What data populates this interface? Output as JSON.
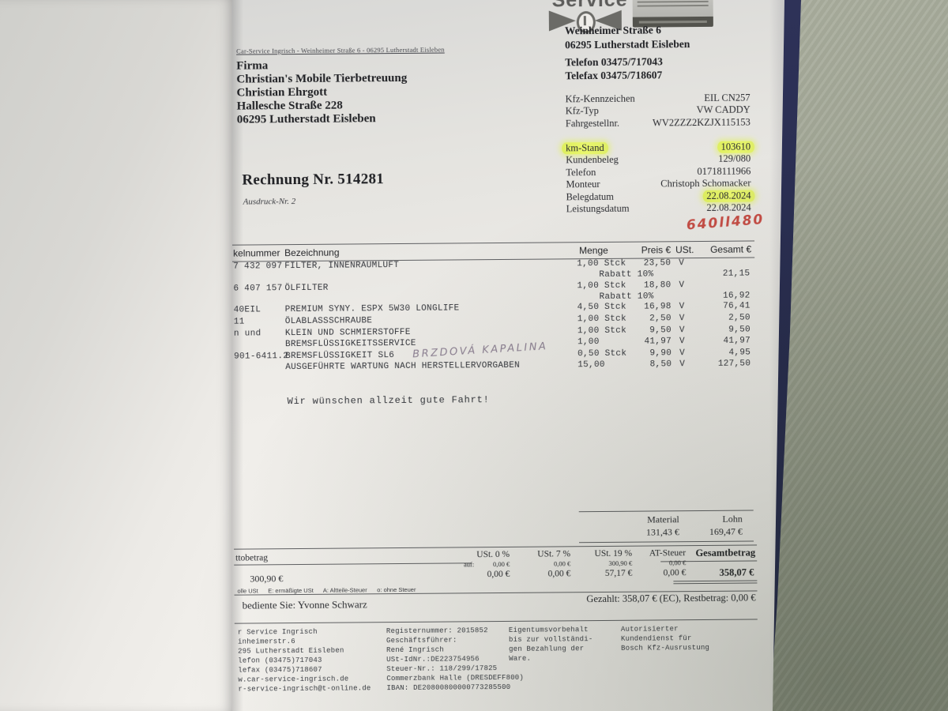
{
  "colors": {
    "highlight": "#e4f45f",
    "binder_edge": "#2b2f55",
    "desk": "#a0a494",
    "handwriting_red": "#c23b34",
    "handwriting_pencil": "#8d8093"
  },
  "logo": {
    "service_text": "Service"
  },
  "header": {
    "sender_line": "Car-Service Ingrisch - Weinheimer Straße 6 - 06295 Lutherstadt Eisleben",
    "recipient_lines": [
      "Firma",
      "Christian's Mobile Tierbetreuung",
      "Christian Ehrgott",
      "Hallesche Straße 228",
      "06295 Lutherstadt Eisleben"
    ],
    "shop_address_lines": [
      "Weinheimer Straße 6",
      "06295 Lutherstadt Eisleben"
    ],
    "shop_contact_lines": [
      "Telefon 03475/717043",
      "Telefax 03475/718607"
    ]
  },
  "invoice": {
    "title": "Rechnung Nr. 514281",
    "print_note": "Ausdruck-Nr. 2"
  },
  "vehicle": {
    "rows": [
      {
        "label": "Kfz-Kennzeichen",
        "value": "EIL CN257"
      },
      {
        "label": "Kfz-Typ",
        "value": "VW CADDY"
      },
      {
        "label": "Fahrgestellnr.",
        "value": "WV2ZZZ2KZJX115153"
      },
      {
        "label": "km-Stand",
        "value": "103610"
      },
      {
        "label": "Kundenbeleg",
        "value": "129/080"
      },
      {
        "label": "Telefon",
        "value": "01718111966"
      },
      {
        "label": "Monteur",
        "value": "Christoph Schomacker"
      },
      {
        "label": "Belegdatum",
        "value": "22.08.2024"
      },
      {
        "label": "Leistungsdatum",
        "value": "22.08.2024"
      }
    ],
    "handwritten_number": "640ll480"
  },
  "items": {
    "headers": {
      "article": "kelnummer",
      "description": "Bezeichnung",
      "quantity": "Menge",
      "price": "Preis €",
      "vat": "USt.",
      "total": "Gesamt €"
    },
    "rows": [
      {
        "article": "7 432 097",
        "description": "FILTER, INNENRAUMLUFT",
        "quantity": "1,00 Stck",
        "price": "23,50",
        "vat": "V",
        "total": ""
      },
      {
        "article": "",
        "description": "",
        "quantity": "Rabatt 10%",
        "price": "",
        "vat": "",
        "total": "21,15"
      },
      {
        "article": "6 407 157",
        "description": "ÖLFILTER",
        "quantity": "1,00 Stck",
        "price": "18,80",
        "vat": "V",
        "total": ""
      },
      {
        "article": "",
        "description": "",
        "quantity": "Rabatt 10%",
        "price": "",
        "vat": "",
        "total": "16,92"
      },
      {
        "article": "40EIL",
        "description": "PREMIUM SYNY. ESPX 5W30 LONGLIFE",
        "quantity": "4,50 Stck",
        "price": "16,98",
        "vat": "V",
        "total": "76,41"
      },
      {
        "article": "11",
        "description": "ÖLABLASSSCHRAUBE",
        "quantity": "1,00 Stck",
        "price": "2,50",
        "vat": "V",
        "total": "2,50"
      },
      {
        "article": "n und",
        "description": "KLEIN UND SCHMIERSTOFFE",
        "quantity": "1,00 Stck",
        "price": "9,50",
        "vat": "V",
        "total": "9,50"
      },
      {
        "article": "",
        "description": "BREMSFLÜSSIGKEITSSERVICE",
        "quantity": "1,00",
        "price": "41,97",
        "vat": "V",
        "total": "41,97"
      },
      {
        "article": "901-6411.2",
        "description": "BREMSFLÜSSIGKEIT SL6",
        "quantity": "0,50 Stck",
        "price": "9,90",
        "vat": "V",
        "total": "4,95",
        "handwritten": "BRZDOVÁ KAPALINA"
      },
      {
        "article": "",
        "description": "AUSGEFÜHRTE WARTUNG NACH HERSTELLERVORGABEN",
        "quantity": "15,00",
        "price": "8,50",
        "vat": "V",
        "total": "127,50"
      }
    ]
  },
  "message": {
    "text": "Wir wünschen allzeit gute Fahrt!"
  },
  "totals": {
    "material_label": "Material",
    "material_value": "131,43 €",
    "labor_label": "Lohn",
    "labor_value": "169,47 €"
  },
  "tax": {
    "net_label_fragment": "ttobetrag",
    "col_headers": [
      "USt. 0 %",
      "USt. 7 %",
      "USt. 19 %",
      "AT-Steuer",
      "Gesamtbetrag"
    ],
    "auf_label": "auf:",
    "base_row": [
      "0,00 €",
      "0,00 €",
      "300,90 €",
      "0,00 €"
    ],
    "net_value": "300,90 €",
    "tax_row": [
      "0,00 €",
      "0,00 €",
      "57,17 €",
      "0,00 €"
    ],
    "total_value": "358,07 €",
    "legend": "olle USt      E: ermäßigte USt      A: Altteile-Steuer      o: ohne Steuer"
  },
  "service": {
    "served_by": "bediente Sie:  Yvonne Schwarz",
    "paid_line": "Gezahlt:  358,07 € (EC),  Restbetrag: 0,00 €"
  },
  "footer": {
    "col1": [
      "r Service Ingrisch",
      "inheimerstr.6",
      "295 Lutherstadt Eisleben",
      "lefon (03475)717043",
      "lefax (03475)718607",
      "w.car-service-ingrisch.de",
      "r-service-ingrisch@t-online.de"
    ],
    "col2": [
      "Registernummer: 2015852",
      "Geschäftsführer:",
      "René Ingrisch",
      "USt-IdNr.:DE223754956",
      "Steuer-Nr.: 118/299/17825",
      "Commerzbank Halle (DRESDEFF800)",
      "IBAN: DE20800800000773285500"
    ],
    "col3": [
      "Eigentumsvorbehalt",
      "bis zur vollständi-",
      "gen Bezahlung der",
      "Ware."
    ],
    "col4": [
      "Autorisierter",
      "Kundendienst für",
      "Bosch Kfz-Ausrustung"
    ]
  }
}
